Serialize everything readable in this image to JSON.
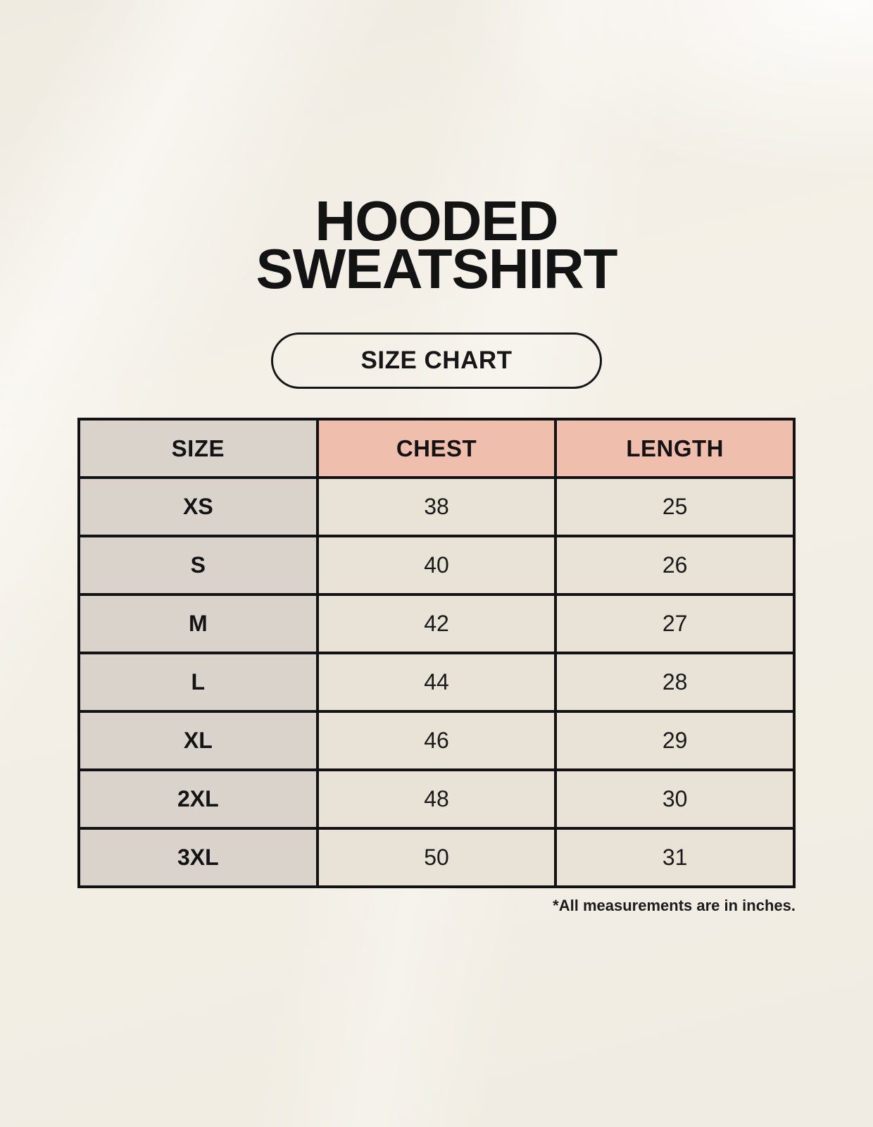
{
  "page": {
    "title_line1": "HOODED",
    "title_line2": "SWEATSHIRT",
    "badge_label": "SIZE CHART",
    "footnote": "*All measurements are in inches."
  },
  "size_table": {
    "headers": [
      "SIZE",
      "CHEST",
      "LENGTH"
    ],
    "rows": [
      {
        "size": "XS",
        "chest": "38",
        "length": "25"
      },
      {
        "size": "S",
        "chest": "40",
        "length": "26"
      },
      {
        "size": "M",
        "chest": "42",
        "length": "27"
      },
      {
        "size": "L",
        "chest": "44",
        "length": "28"
      },
      {
        "size": "XL",
        "chest": "46",
        "length": "29"
      },
      {
        "size": "2XL",
        "chest": "48",
        "length": "30"
      },
      {
        "size": "3XL",
        "chest": "50",
        "length": "31"
      }
    ]
  },
  "colors": {
    "background": "#f4f0e7",
    "header_accent": "#efbead",
    "label_column": "#d9d3cc",
    "value_cell": "#e9e2d7",
    "table_border": "#121212",
    "text": "#131313"
  }
}
